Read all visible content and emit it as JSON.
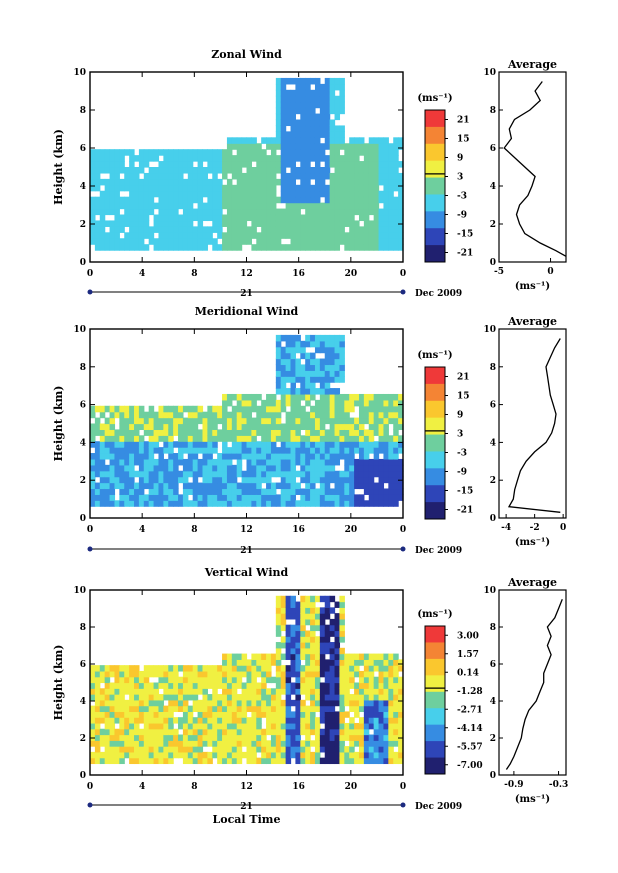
{
  "figure": {
    "xlabel": "Local Time",
    "date_label": "Dec 2009",
    "day_label": "21"
  },
  "chart_data": [
    {
      "type": "heatmap",
      "title": "Zonal Wind",
      "ylabel": "Height (km)",
      "x_ticks": [
        "0",
        "4",
        "8",
        "12",
        "16",
        "20",
        "0"
      ],
      "y_ticks": [
        "0",
        "2",
        "4",
        "6",
        "8",
        "10"
      ],
      "xlim": [
        0,
        24
      ],
      "ylim": [
        0,
        10
      ],
      "colorbar": {
        "unit": "(ms⁻¹)",
        "labels": [
          "21",
          "15",
          "9",
          "3",
          "-3",
          "-9",
          "-15",
          "-21"
        ],
        "vmin": -21,
        "vmax": 21
      },
      "description_levels": {
        "base": -6,
        "patches": [
          {
            "t": [
              0,
              10
            ],
            "h": [
              0.6,
              4.2
            ],
            "v": -5
          },
          {
            "t": [
              10,
              22
            ],
            "h": [
              0.5,
              6
            ],
            "v": -1
          },
          {
            "t": [
              14.5,
              18
            ],
            "h": [
              3,
              9.5
            ],
            "v": -9
          }
        ]
      },
      "average": {
        "title": "Average",
        "xlabel": "(ms⁻¹)",
        "x_ticks": [
          "-5",
          "0"
        ],
        "xlim": [
          -5,
          1.5
        ],
        "ylim": [
          0,
          10
        ],
        "heights": [
          0.3,
          0.6,
          1.0,
          1.5,
          2.0,
          2.5,
          3.0,
          3.5,
          4.0,
          4.5,
          5.0,
          5.5,
          6.0,
          6.5,
          7.0,
          7.5,
          8.0,
          8.5,
          9.0,
          9.5
        ],
        "values": [
          1.5,
          0.5,
          -1.0,
          -2.5,
          -3.0,
          -3.3,
          -3.0,
          -2.2,
          -1.8,
          -1.5,
          -2.5,
          -3.5,
          -4.5,
          -3.8,
          -4.0,
          -3.5,
          -2.0,
          -1.0,
          -1.5,
          -0.8
        ]
      }
    },
    {
      "type": "heatmap",
      "title": "Meridional Wind",
      "ylabel": "Height (km)",
      "x_ticks": [
        "0",
        "4",
        "8",
        "12",
        "16",
        "20",
        "0"
      ],
      "y_ticks": [
        "0",
        "2",
        "4",
        "6",
        "8",
        "10"
      ],
      "xlim": [
        0,
        24
      ],
      "ylim": [
        0,
        10
      ],
      "colorbar": {
        "unit": "(ms⁻¹)",
        "labels": [
          "21",
          "15",
          "9",
          "3",
          "-3",
          "-9",
          "-15",
          "-21"
        ],
        "vmin": -21,
        "vmax": 21
      },
      "description_levels": {
        "base": -7,
        "patches": [
          {
            "t": [
              0,
              24
            ],
            "h": [
              4,
              6.5
            ],
            "v": 2
          },
          {
            "t": [
              20,
              24
            ],
            "h": [
              0.5,
              3
            ],
            "v": -13
          }
        ]
      },
      "average": {
        "title": "Average",
        "xlabel": "(ms⁻¹)",
        "x_ticks": [
          "-4",
          "-2",
          "0"
        ],
        "xlim": [
          -4.5,
          0.2
        ],
        "ylim": [
          0,
          10
        ],
        "heights": [
          0.3,
          0.6,
          1.0,
          1.5,
          2.0,
          2.5,
          3.0,
          3.5,
          4.0,
          4.5,
          5.0,
          5.5,
          6.0,
          6.5,
          7.0,
          7.5,
          8.0,
          8.5,
          9.0,
          9.5
        ],
        "values": [
          -0.2,
          -3.8,
          -3.5,
          -3.4,
          -3.2,
          -3.0,
          -2.6,
          -2.0,
          -1.2,
          -0.8,
          -0.6,
          -0.5,
          -0.7,
          -0.9,
          -1.0,
          -1.1,
          -1.2,
          -0.9,
          -0.6,
          -0.2
        ]
      }
    },
    {
      "type": "heatmap",
      "title": "Vertical Wind",
      "ylabel": "Height (km)",
      "x_ticks": [
        "0",
        "4",
        "8",
        "12",
        "16",
        "20",
        "0"
      ],
      "y_ticks": [
        "0",
        "2",
        "4",
        "6",
        "8",
        "10"
      ],
      "xlim": [
        0,
        24
      ],
      "ylim": [
        0,
        10
      ],
      "colorbar": {
        "unit": "(ms⁻¹)",
        "labels": [
          "3.00",
          "1.57",
          "0.14",
          "-1.28",
          "-2.71",
          "-4.14",
          "-5.57",
          "-7.00"
        ],
        "vmin": -7.0,
        "vmax": 3.0
      },
      "description_levels": {
        "base": -0.9,
        "patches": [
          {
            "t": [
              15,
              16
            ],
            "h": [
              0.5,
              10
            ],
            "v": -5.2
          },
          {
            "t": [
              17.5,
              19
            ],
            "h": [
              0.5,
              9.8
            ],
            "v": -6.2
          },
          {
            "t": [
              21,
              22.5
            ],
            "h": [
              0.5,
              4
            ],
            "v": -4.4
          }
        ]
      },
      "average": {
        "title": "Average",
        "xlabel": "(ms⁻¹)",
        "x_ticks": [
          "-0.9",
          "-0.3"
        ],
        "xlim": [
          -1.1,
          -0.2
        ],
        "ylim": [
          0,
          10
        ],
        "heights": [
          0.3,
          0.6,
          1.0,
          1.5,
          2.0,
          2.5,
          3.0,
          3.5,
          4.0,
          4.5,
          5.0,
          5.5,
          6.0,
          6.5,
          7.0,
          7.5,
          8.0,
          8.5,
          9.0,
          9.5
        ],
        "values": [
          -1.0,
          -0.95,
          -0.9,
          -0.85,
          -0.8,
          -0.78,
          -0.75,
          -0.7,
          -0.6,
          -0.55,
          -0.5,
          -0.5,
          -0.45,
          -0.4,
          -0.45,
          -0.4,
          -0.45,
          -0.35,
          -0.3,
          -0.25
        ]
      }
    }
  ]
}
